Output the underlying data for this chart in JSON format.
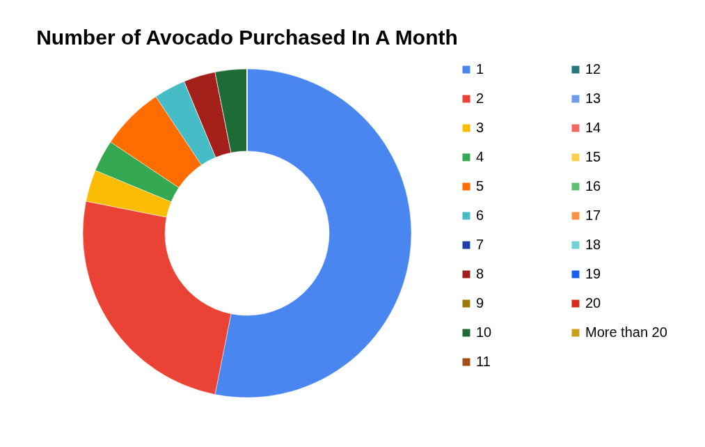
{
  "chart_data": {
    "type": "donut",
    "title": "Number of Avocado Purchased In A Month",
    "categories": [
      "1",
      "2",
      "3",
      "4",
      "5",
      "6",
      "7",
      "8",
      "9",
      "10",
      "11",
      "12",
      "13",
      "14",
      "15",
      "16",
      "17",
      "18",
      "19",
      "20",
      "More than 20"
    ],
    "values": [
      53.125,
      25,
      3.125,
      3.125,
      6.25,
      3.125,
      0,
      3.125,
      0,
      3.125,
      0,
      0,
      0,
      0,
      0,
      0,
      0,
      0,
      0,
      0,
      0
    ],
    "colors": [
      "#4a86f0",
      "#ea4335",
      "#fbbc04",
      "#34a853",
      "#ff6d01",
      "#46bdc6",
      "#1c3fa8",
      "#a3201a",
      "#9c7a0a",
      "#1e6b35",
      "#a84b12",
      "#25787e",
      "#6d9eeb",
      "#f06a5f",
      "#fcd04f",
      "#5bc274",
      "#ff9343",
      "#71d0d7",
      "#1a5ff0",
      "#d52c1f",
      "#c9a018"
    ],
    "legend": "right"
  }
}
